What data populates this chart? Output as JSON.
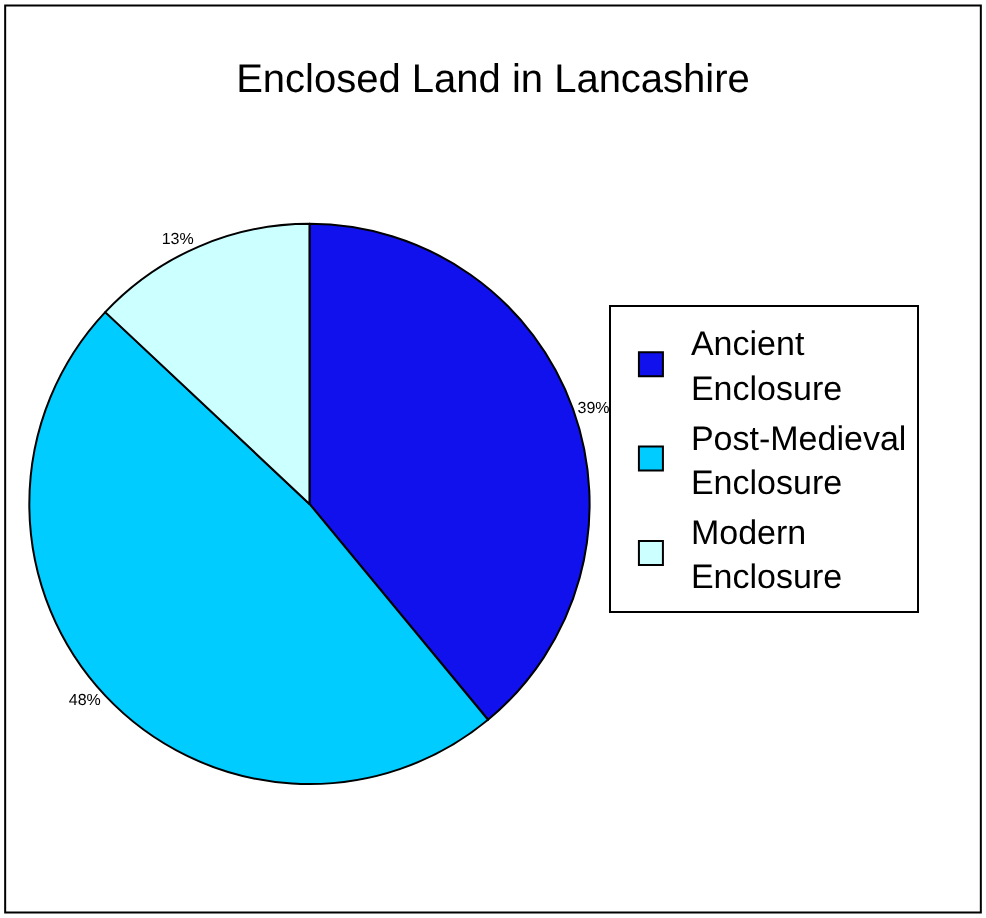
{
  "chart_data": {
    "type": "pie",
    "title": "Enclosed Land in Lancashire",
    "categories": [
      "Ancient Enclosure",
      "Post-Medieval Enclosure",
      "Modern Enclosure"
    ],
    "values": [
      39,
      48,
      13
    ],
    "value_labels": [
      "39%",
      "48%",
      "13%"
    ],
    "colors": [
      "#1111ee",
      "#00ccff",
      "#ccffff"
    ],
    "legend": "right"
  }
}
